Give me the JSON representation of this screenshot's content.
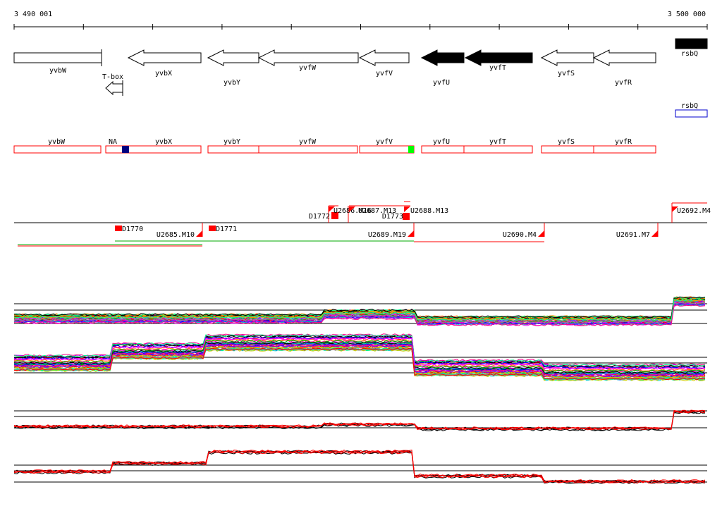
{
  "ruler": {
    "start_label": "3 490 001",
    "end_label": "3 500 000"
  },
  "genes_top": [
    {
      "name": "yvbW",
      "strand": "+",
      "filled": false
    },
    {
      "name": "yvbX",
      "strand": "-",
      "filled": false
    },
    {
      "name": "yvbY",
      "strand": "-",
      "filled": false
    },
    {
      "name": "yvfW",
      "strand": "-",
      "filled": false
    },
    {
      "name": "yvfV",
      "strand": "-",
      "filled": false
    },
    {
      "name": "yvfU",
      "strand": "-",
      "filled": true
    },
    {
      "name": "yvfT",
      "strand": "-",
      "filled": true
    },
    {
      "name": "yvfS",
      "strand": "-",
      "filled": false
    },
    {
      "name": "yvfR",
      "strand": "-",
      "filled": false
    },
    {
      "name": "rsbQ",
      "strand": "+",
      "filled": true
    }
  ],
  "tbox_label": "T-box",
  "rsbq_box_label": "rsbQ",
  "genes_mid": [
    {
      "name": "yvbW"
    },
    {
      "name": "NA"
    },
    {
      "name": "yvbX"
    },
    {
      "name": "yvbY"
    },
    {
      "name": "yvfW"
    },
    {
      "name": "yvfV"
    },
    {
      "name": "yvfU"
    },
    {
      "name": "yvfT"
    },
    {
      "name": "yvfS"
    },
    {
      "name": "yvfR"
    }
  ],
  "segments": {
    "upper": [
      "D1772",
      "U2686.M16",
      "U2687.M13",
      "D1773",
      "U2688.M13",
      "U2692.M4"
    ],
    "lower": [
      "D1770",
      "U2685.M10",
      "D1771",
      "U2689.M19",
      "U2690.M4",
      "U2691.M7"
    ]
  },
  "colors": {
    "gene_outline": "#000000",
    "gene_filled": "#000000",
    "segment_red": "#ff0000",
    "rsbq_box": "#0000cc",
    "na_marker": "#000080",
    "yvfv_marker": "#00ff00",
    "trace_series": [
      "#ff0000",
      "#00aa00",
      "#0000ff",
      "#ff00ff",
      "#00cccc",
      "#cccc00",
      "#ff8800",
      "#8800ff",
      "#000000",
      "#888888",
      "#00ff88",
      "#ff0088"
    ]
  }
}
